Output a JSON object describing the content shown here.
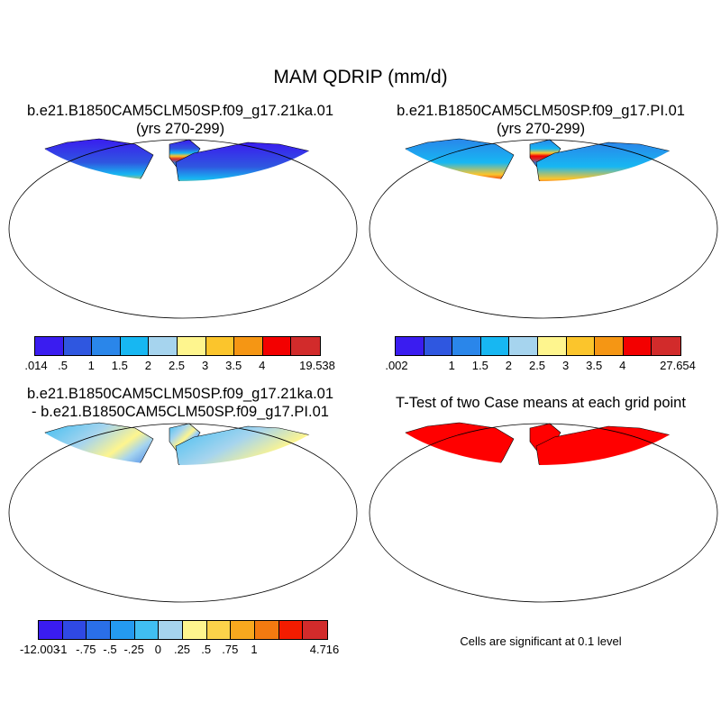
{
  "main_title": "MAM QDRIP (mm/d)",
  "panels": {
    "p1": {
      "title1": "b.e21.B1850CAM5CLM50SP.f09_g17.21ka.01",
      "title2": "(yrs 270-299)"
    },
    "p2": {
      "title1": "b.e21.B1850CAM5CLM50SP.f09_g17.PI.01",
      "title2": "(yrs 270-299)"
    },
    "p3": {
      "title1": "b.e21.B1850CAM5CLM50SP.f09_g17.21ka.01",
      "title2": "- b.e21.B1850CAM5CLM50SP.f09_g17.PI.01"
    },
    "p4": {
      "title1": "T-Test of two Case means at each grid point"
    }
  },
  "colorbars": {
    "cb1": {
      "colors": [
        "#3a1cf0",
        "#2f57e0",
        "#2a86ea",
        "#17b7f2",
        "#a6d4ee",
        "#fef58e",
        "#fbc52c",
        "#f59614",
        "#f30000",
        "#d22b2b"
      ],
      "labels": [
        ".014",
        ".5",
        "1",
        "1.5",
        "2",
        "2.5",
        "3",
        "3.5",
        "4",
        "19.538"
      ]
    },
    "cb2": {
      "colors": [
        "#3a1cf0",
        "#2f57e0",
        "#2a86ea",
        "#17b7f2",
        "#a6d4ee",
        "#fef58e",
        "#fbc52c",
        "#f59614",
        "#f30000",
        "#d22b2b"
      ],
      "labels": [
        ".002",
        "1",
        "1.5",
        "2",
        "2.5",
        "3",
        "3.5",
        "4",
        "27.654"
      ]
    },
    "cb3": {
      "colors": [
        "#3a1cf0",
        "#2f49e4",
        "#2a6fe8",
        "#249af0",
        "#40bef2",
        "#a6d4ee",
        "#fef58e",
        "#fbd24a",
        "#f8a81e",
        "#f37a10",
        "#f31c00",
        "#d22b2b"
      ],
      "labels": [
        "-12.003",
        "-1",
        "-.75",
        "-.5",
        "-.25",
        "0",
        ".25",
        ".5",
        ".75",
        "1",
        "4.716"
      ]
    }
  },
  "significance_note": "Cells are significant at 0.1 level",
  "colors": {
    "ocean": "#ffffff",
    "significant": "#ff0000",
    "background": "#ffffff"
  }
}
